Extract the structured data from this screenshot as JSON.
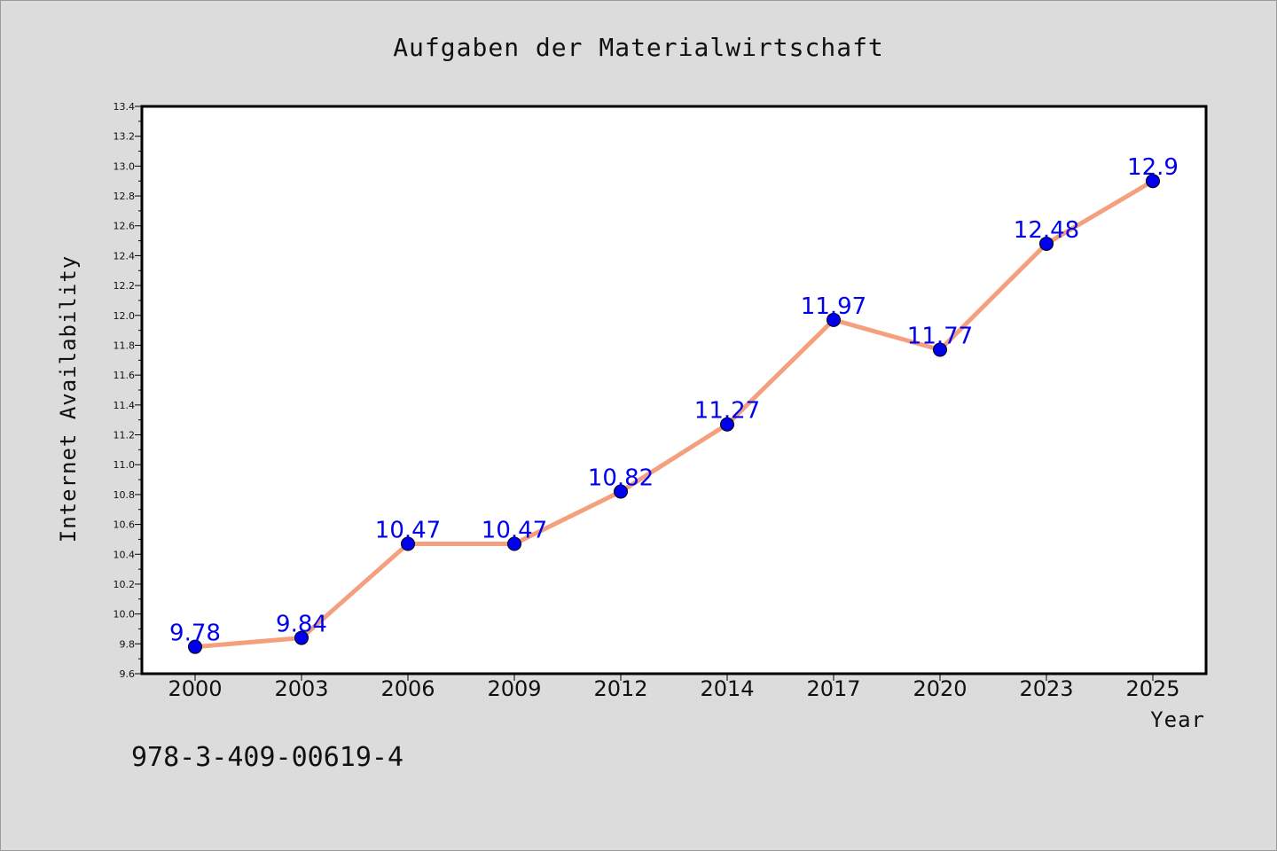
{
  "chart_data": {
    "type": "line",
    "title": "Aufgaben der Materialwirtschaft",
    "xlabel": "Year",
    "ylabel": "Internet Availability",
    "categories": [
      "2000",
      "2003",
      "2006",
      "2009",
      "2012",
      "2014",
      "2017",
      "2020",
      "2023",
      "2025"
    ],
    "series": [
      {
        "values": [
          9.78,
          9.84,
          10.47,
          10.47,
          10.82,
          11.27,
          11.97,
          11.77,
          12.48,
          12.9
        ],
        "labels": [
          "9.78",
          "9.84",
          "10.47",
          "10.47",
          "10.82",
          "11.27",
          "11.97",
          "11.77",
          "12.48",
          "12.9"
        ],
        "line_color": "#f4a07f",
        "marker_color": "#0000ee",
        "label_color": "#0000ee"
      }
    ],
    "ylim": [
      9.6,
      13.4
    ],
    "yticks": [
      9.6,
      9.8,
      10.0,
      10.2,
      10.4,
      10.6,
      10.8,
      11.0,
      11.2,
      11.4,
      11.6,
      11.8,
      12.0,
      12.2,
      12.4,
      12.6,
      12.8,
      13.0,
      13.2,
      13.4
    ],
    "ytick_labels": [
      "9.6",
      "9.8",
      "10.0",
      "10.2",
      "10.4",
      "10.6",
      "10.8",
      "11.0",
      "11.2",
      "11.4",
      "11.6",
      "11.8",
      "12.0",
      "12.2",
      "12.4",
      "12.6",
      "12.8",
      "13.0",
      "13.2",
      "13.4"
    ],
    "grid": false,
    "legend": "none"
  },
  "footer": {
    "isbn": "978-3-409-00619-4"
  },
  "colors": {
    "background": "#dcdcdc",
    "plot_background": "#ffffff",
    "axis": "#000000"
  }
}
